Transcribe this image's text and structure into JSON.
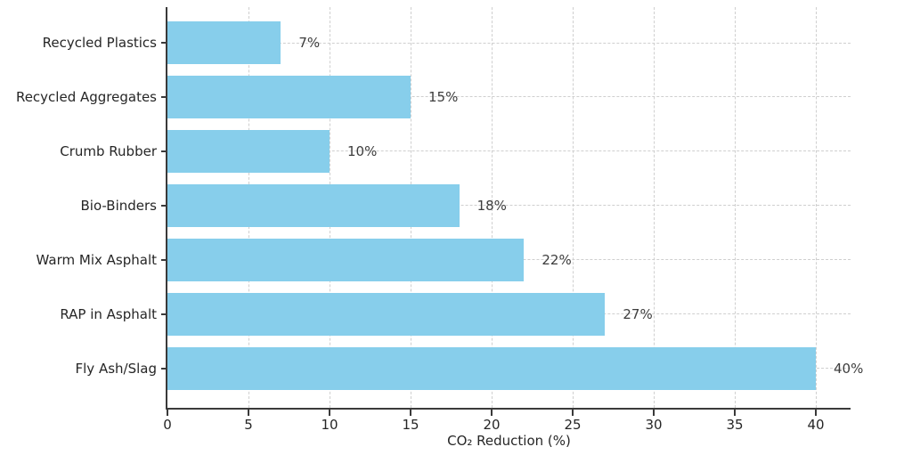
{
  "chart_data": {
    "type": "bar",
    "orientation": "horizontal",
    "title": "",
    "categories": [
      "Recycled Plastics",
      "Recycled Aggregates",
      "Crumb Rubber",
      "Bio-Binders",
      "Warm Mix Asphalt",
      "RAP in Asphalt",
      "Fly Ash/Slag"
    ],
    "values": [
      7,
      15,
      10,
      18,
      22,
      27,
      40
    ],
    "value_labels": [
      "7%",
      "15%",
      "10%",
      "18%",
      "22%",
      "27%",
      "40%"
    ],
    "xlabel": "CO₂ Reduction (%)",
    "x_ticks": [
      0,
      5,
      10,
      15,
      20,
      25,
      30,
      35,
      40
    ],
    "x_tick_labels": [
      "0",
      "5",
      "10",
      "15",
      "20",
      "25",
      "30",
      "35",
      "40"
    ],
    "xlim": [
      0,
      42.1
    ],
    "grid": "dashed",
    "legend_position": "none",
    "colors": {
      "bar_fill": "#87CEEB",
      "grid_line": "#cfcfcf",
      "axis_spine": "#3a3a3a",
      "tick_text": "#262626",
      "value_text": "#3d3d3d",
      "background": "#ffffff"
    }
  }
}
